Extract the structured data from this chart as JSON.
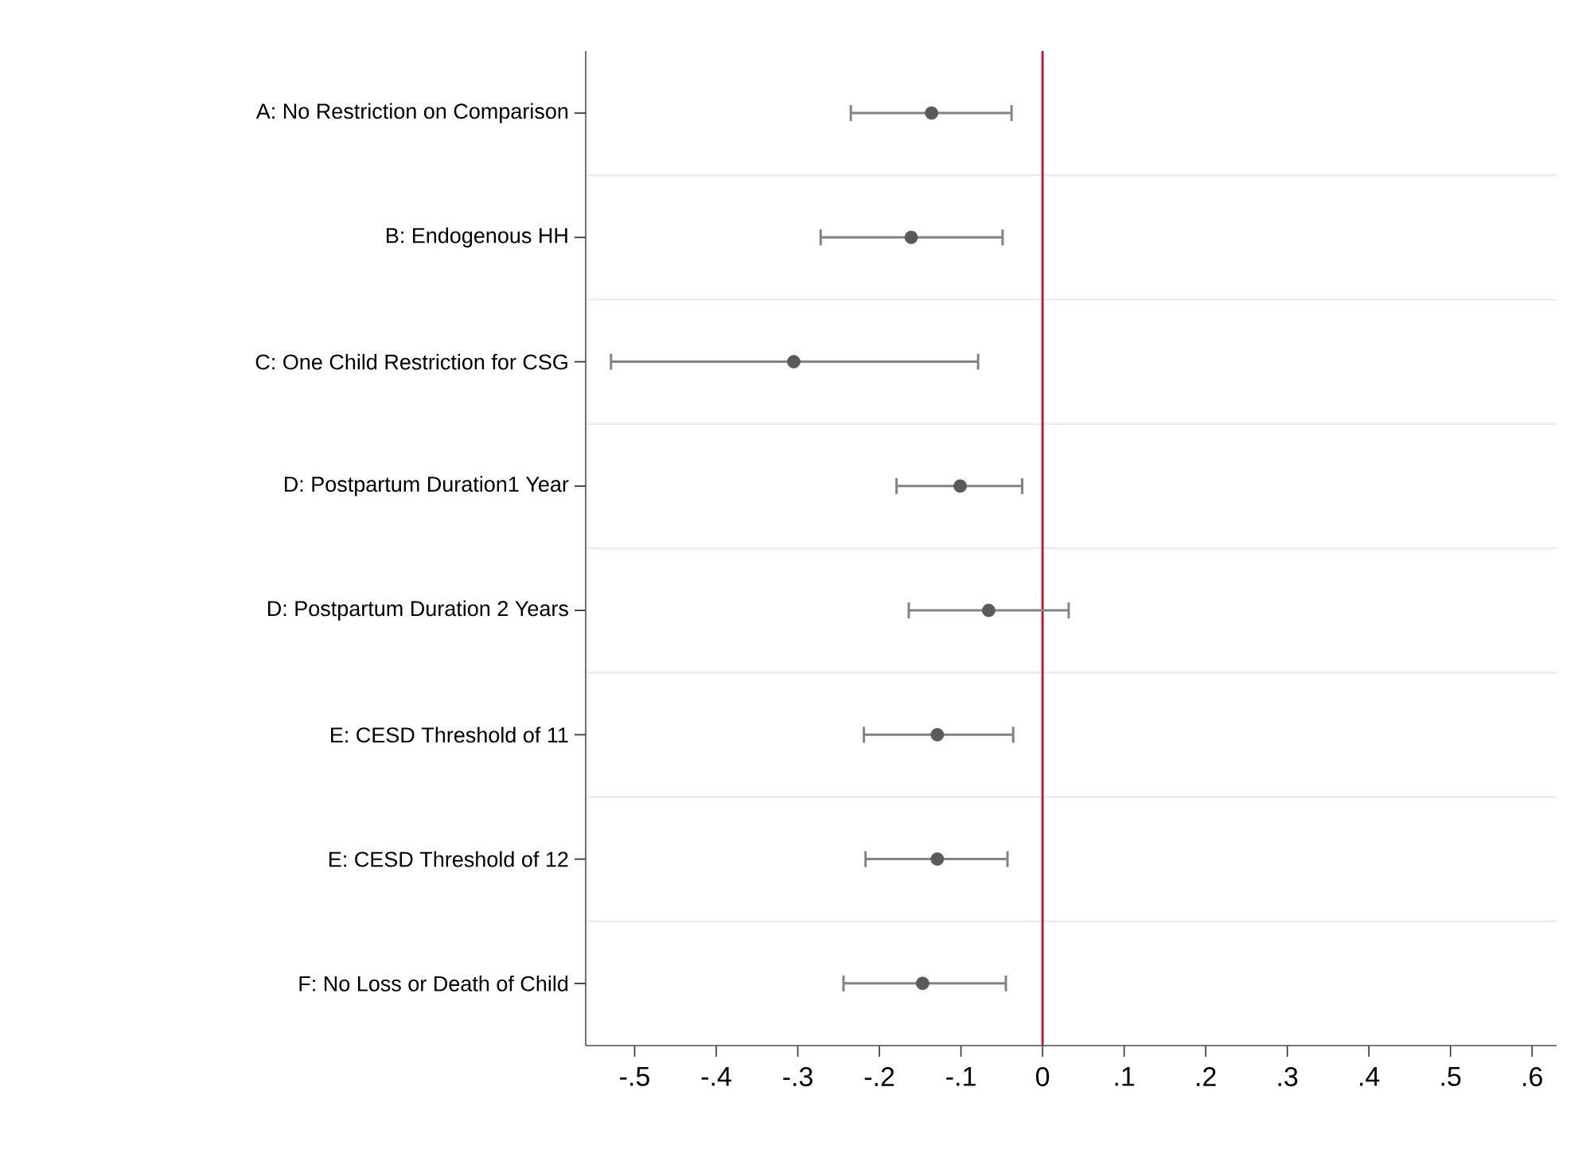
{
  "chart_data": {
    "type": "scatter",
    "orientation": "horizontal",
    "marker": "circle",
    "color": "#5a5a5a",
    "grid": "y",
    "categories": [
      "A: No Restriction on Comparison",
      "B: Endogenous HH",
      "C: One Child Restriction for CSG",
      "D: Postpartum Duration1 Year",
      "D: Postpartum Duration 2 Years",
      "E: CESD Threshold of 11",
      "E: CESD Threshold of 12",
      "F: No Loss or Death of Child"
    ],
    "values": [
      -0.136,
      -0.161,
      -0.305,
      -0.101,
      -0.066,
      -0.129,
      -0.129,
      -0.147
    ],
    "errors": [
      [
        -0.235,
        -0.038
      ],
      [
        -0.272,
        -0.049
      ],
      [
        -0.529,
        -0.079
      ],
      [
        -0.179,
        -0.025
      ],
      [
        -0.164,
        0.032
      ],
      [
        -0.219,
        -0.036
      ],
      [
        -0.217,
        -0.043
      ],
      [
        -0.244,
        -0.045
      ]
    ],
    "xlim": [
      -0.56,
      0.63
    ],
    "xticks": [
      {
        "value": -0.5,
        "label": "-.5"
      },
      {
        "value": -0.4,
        "label": "-.4"
      },
      {
        "value": -0.3,
        "label": "-.3"
      },
      {
        "value": -0.2,
        "label": "-.2"
      },
      {
        "value": -0.1,
        "label": "-.1"
      },
      0,
      {
        "value": 0.1,
        "label": ".1"
      },
      {
        "value": 0.2,
        "label": ".2"
      },
      {
        "value": 0.3,
        "label": ".3"
      },
      {
        "value": 0.4,
        "label": ".4"
      },
      {
        "value": 0.5,
        "label": ".5"
      },
      {
        "value": 0.6,
        "label": ".6"
      }
    ],
    "ref_lines": [
      {
        "axis": "x",
        "value": 0,
        "color": "#c8102e"
      }
    ]
  }
}
